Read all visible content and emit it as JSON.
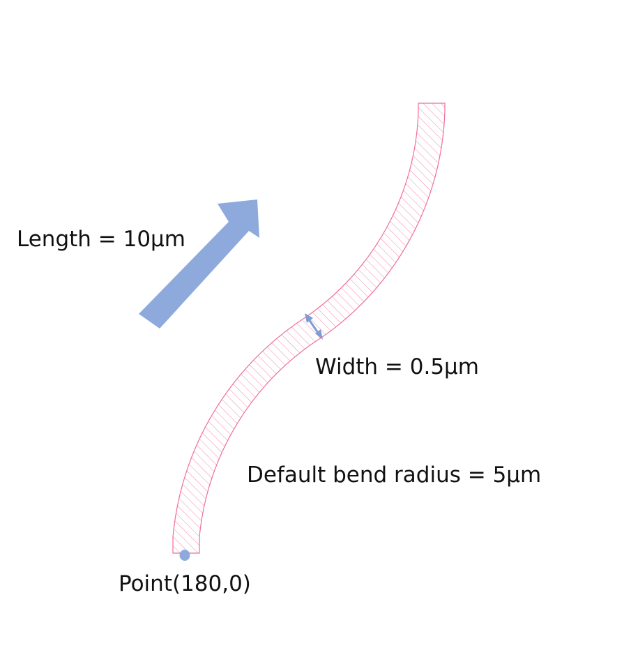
{
  "labels": {
    "length": "Length = 10μm",
    "width": "Width = 0.5μm",
    "bend_radius": "Default bend radius = 5μm",
    "point": "Point(180,0)"
  },
  "colors": {
    "waveguide_outline": "#ef6f97",
    "waveguide_hatch": "#f08aab",
    "arrow_fill": "#8eaadd",
    "width_marker": "#7d9cd6",
    "point_marker": "#8eaadd",
    "text": "#111111"
  }
}
